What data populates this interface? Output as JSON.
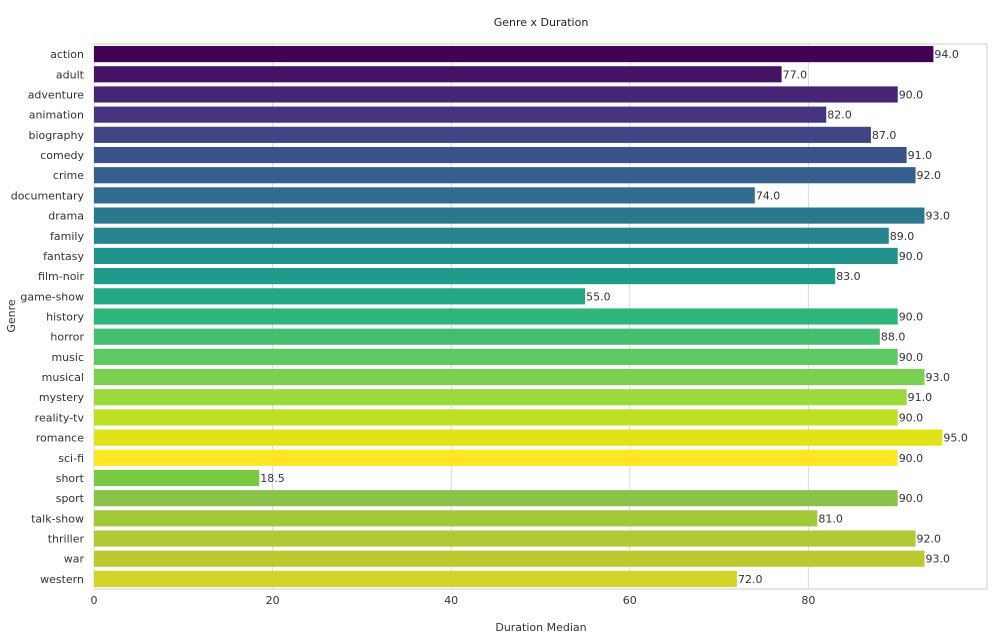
{
  "chart_data": {
    "type": "bar",
    "orientation": "horizontal",
    "title": "Genre x Duration",
    "xlabel": "Duration Median",
    "ylabel": "Genre",
    "xlim": [
      0,
      100
    ],
    "xticks": [
      0,
      20,
      40,
      60,
      80
    ],
    "grid": true,
    "categories": [
      "action",
      "adult",
      "adventure",
      "animation",
      "biography",
      "comedy",
      "crime",
      "documentary",
      "drama",
      "family",
      "fantasy",
      "film-noir",
      "game-show",
      "history",
      "horror",
      "music",
      "musical",
      "mystery",
      "reality-tv",
      "romance",
      "sci-fi",
      "short",
      "sport",
      "talk-show",
      "thriller",
      "war",
      "western"
    ],
    "values": [
      94.0,
      77.0,
      90.0,
      82.0,
      87.0,
      91.0,
      92.0,
      74.0,
      93.0,
      89.0,
      90.0,
      83.0,
      55.0,
      90.0,
      88.0,
      90.0,
      93.0,
      91.0,
      90.0,
      95.0,
      90.0,
      18.5,
      90.0,
      81.0,
      92.0,
      93.0,
      72.0
    ],
    "value_labels": [
      "94.0",
      "77.0",
      "90.0",
      "82.0",
      "87.0",
      "91.0",
      "92.0",
      "74.0",
      "93.0",
      "89.0",
      "90.0",
      "83.0",
      "55.0",
      "90.0",
      "88.0",
      "90.0",
      "93.0",
      "91.0",
      "90.0",
      "95.0",
      "90.0",
      "18.5",
      "90.0",
      "81.0",
      "92.0",
      "93.0",
      "72.0"
    ],
    "colors": [
      "#440154",
      "#471365",
      "#482475",
      "#463480",
      "#414487",
      "#3b528b",
      "#355f8d",
      "#2f6c8e",
      "#2a788e",
      "#25848e",
      "#21918c",
      "#1e9c89",
      "#22a884",
      "#2fb47c",
      "#44bf70",
      "#5ec962",
      "#7ad151",
      "#9bd93c",
      "#bddf26",
      "#dfe318",
      "#fde725",
      "#7ac943",
      "#8bc34a",
      "#a2c93a",
      "#b0c935",
      "#bcc92f",
      "#d2d42a"
    ]
  }
}
